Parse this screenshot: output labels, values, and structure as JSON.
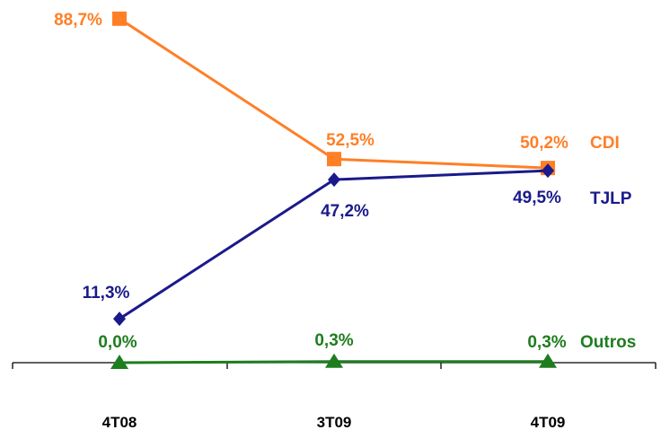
{
  "chart_data": {
    "type": "line",
    "categories": [
      "4T08",
      "3T09",
      "4T09"
    ],
    "ylim": [
      0,
      100
    ],
    "grid": false,
    "series": [
      {
        "name": "CDI",
        "values": [
          88.7,
          52.5,
          50.2
        ],
        "labels": [
          "88,7%",
          "52,5%",
          "50,2%"
        ],
        "color": "#FF7F27",
        "marker": "square"
      },
      {
        "name": "TJLP",
        "values": [
          11.3,
          47.2,
          49.5
        ],
        "labels": [
          "11,3%",
          "47,2%",
          "49,5%"
        ],
        "color": "#1A1A8C",
        "marker": "diamond"
      },
      {
        "name": "Outros",
        "values": [
          0.0,
          0.3,
          0.3
        ],
        "labels": [
          "0,0%",
          "0,3%",
          "0,3%"
        ],
        "color": "#1E7D1E",
        "marker": "triangle"
      }
    ]
  }
}
